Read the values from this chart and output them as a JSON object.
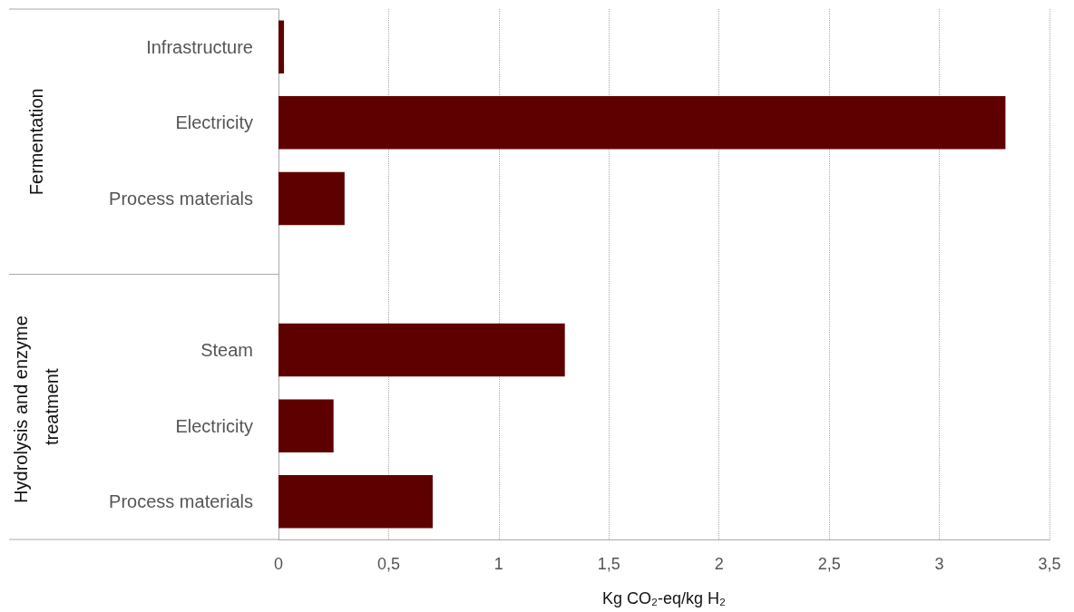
{
  "chart_data": {
    "type": "bar",
    "orientation": "horizontal",
    "categories": [
      "Infrastructure",
      "Electricity",
      "Process materials",
      null,
      "Steam",
      "Electricity",
      "Process materials"
    ],
    "values": [
      0.025,
      3.3,
      0.3,
      null,
      1.3,
      0.25,
      0.7
    ],
    "color": "#5e0000",
    "xlim": [
      0,
      3.5
    ],
    "xticks": [
      0,
      {
        "value": 0.5,
        "label": "0,5"
      },
      1,
      {
        "value": 1.5,
        "label": "1,5"
      },
      2,
      {
        "value": 2.5,
        "label": "2,5"
      },
      3,
      {
        "value": 3.5,
        "label": "3,5"
      }
    ],
    "xlabel": "Kg CO₂-eq/kg H₂",
    "annotations": [
      "Fermentation",
      "Hydrolysis and enzyme treatment"
    ],
    "grid": "x"
  }
}
